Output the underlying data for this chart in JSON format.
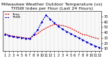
{
  "title": "Milwaukee Weather Outdoor Temperature (vs) THSW Index per Hour (Last 24 Hours)",
  "red_line": [
    38,
    35,
    33,
    32,
    31,
    30,
    29,
    34,
    38,
    44,
    48,
    52,
    55,
    54,
    53,
    51,
    48,
    44,
    40,
    36,
    35,
    32,
    30,
    28
  ],
  "blue_line": [
    36,
    34,
    32,
    31,
    30,
    29,
    28,
    36,
    45,
    60,
    72,
    65,
    58,
    52,
    46,
    42,
    38,
    34,
    30,
    26,
    22,
    18,
    15,
    12
  ],
  "x_labels": [
    "1",
    "2",
    "3",
    "4",
    "5",
    "6",
    "7",
    "8",
    "9",
    "10",
    "11",
    "12",
    "1",
    "2",
    "3",
    "4",
    "5",
    "6",
    "7",
    "8",
    "9",
    "10",
    "11",
    "12"
  ],
  "ylim_min": 5,
  "ylim_max": 80,
  "yticks": [
    10,
    20,
    30,
    40,
    50,
    60,
    70
  ],
  "red_color": "#dd0000",
  "blue_color": "#0000cc",
  "bg_color": "#ffffff",
  "plot_bg_color": "#f8f8f8",
  "grid_color": "#aaaaaa",
  "title_fontsize": 4.5,
  "tick_fontsize": 3.5
}
